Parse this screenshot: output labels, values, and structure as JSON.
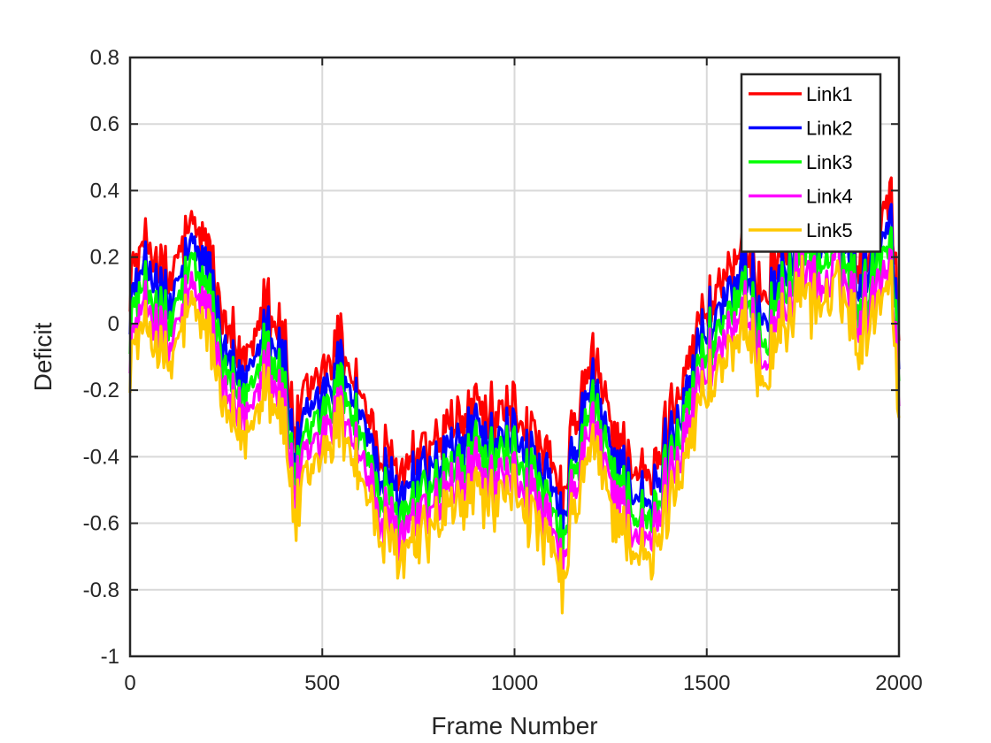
{
  "chart_data": {
    "type": "line",
    "title": "",
    "xlabel": "Frame Number",
    "ylabel": "Deficit",
    "xlim": [
      0,
      2000
    ],
    "ylim": [
      -1,
      0.8
    ],
    "x_ticks": [
      0,
      500,
      1000,
      1500,
      2000
    ],
    "x_tick_labels": [
      "0",
      "500",
      "1000",
      "1500",
      "2000"
    ],
    "y_ticks": [
      -1,
      -0.8,
      -0.6,
      -0.4,
      -0.2,
      0,
      0.2,
      0.4,
      0.6,
      0.8
    ],
    "y_tick_labels": [
      "-1",
      "-0.8",
      "-0.6",
      "-0.4",
      "-0.2",
      "0",
      "0.2",
      "0.4",
      "0.6",
      "0.8"
    ],
    "grid": true,
    "legend_position": "top-right",
    "x": [
      0,
      50,
      100,
      150,
      200,
      250,
      300,
      350,
      400,
      430,
      450,
      500,
      550,
      600,
      650,
      700,
      750,
      800,
      850,
      900,
      950,
      1000,
      1050,
      1100,
      1130,
      1150,
      1200,
      1250,
      1300,
      1350,
      1400,
      1450,
      1500,
      1550,
      1600,
      1650,
      1700,
      1750,
      1800,
      1850,
      1900,
      1950,
      1980,
      2000
    ],
    "series": [
      {
        "name": "Link1",
        "color": "#ff0000",
        "values": [
          0.15,
          0.25,
          0.1,
          0.28,
          0.25,
          -0.05,
          -0.1,
          0.1,
          -0.05,
          -0.35,
          -0.25,
          -0.15,
          -0.05,
          -0.2,
          -0.4,
          -0.45,
          -0.4,
          -0.35,
          -0.3,
          -0.25,
          -0.3,
          -0.25,
          -0.35,
          -0.45,
          -0.55,
          -0.35,
          -0.1,
          -0.3,
          -0.4,
          -0.5,
          -0.3,
          -0.1,
          0.05,
          0.15,
          0.2,
          0.1,
          0.25,
          0.35,
          0.3,
          0.35,
          0.2,
          0.35,
          0.4,
          -0.05
        ]
      },
      {
        "name": "Link2",
        "color": "#0000ff",
        "values": [
          0.08,
          0.18,
          0.03,
          0.21,
          0.18,
          -0.12,
          -0.17,
          0.03,
          -0.12,
          -0.42,
          -0.32,
          -0.22,
          -0.12,
          -0.27,
          -0.47,
          -0.52,
          -0.47,
          -0.42,
          -0.37,
          -0.32,
          -0.37,
          -0.32,
          -0.42,
          -0.52,
          -0.62,
          -0.42,
          -0.17,
          -0.37,
          -0.47,
          -0.57,
          -0.37,
          -0.17,
          -0.02,
          0.08,
          0.13,
          0.03,
          0.18,
          0.28,
          0.23,
          0.28,
          0.13,
          0.28,
          0.33,
          -0.12
        ]
      },
      {
        "name": "Link3",
        "color": "#00ff00",
        "values": [
          0.02,
          0.12,
          -0.03,
          0.15,
          0.12,
          -0.18,
          -0.23,
          -0.03,
          -0.18,
          -0.48,
          -0.38,
          -0.28,
          -0.18,
          -0.33,
          -0.53,
          -0.58,
          -0.53,
          -0.48,
          -0.43,
          -0.38,
          -0.43,
          -0.38,
          -0.48,
          -0.58,
          -0.68,
          -0.48,
          -0.23,
          -0.43,
          -0.53,
          -0.63,
          -0.43,
          -0.23,
          -0.08,
          0.02,
          0.07,
          -0.03,
          0.12,
          0.22,
          0.17,
          0.22,
          0.07,
          0.22,
          0.27,
          -0.18
        ]
      },
      {
        "name": "Link4",
        "color": "#ff00ff",
        "values": [
          -0.04,
          0.06,
          -0.09,
          0.09,
          0.06,
          -0.24,
          -0.29,
          -0.09,
          -0.24,
          -0.54,
          -0.44,
          -0.34,
          -0.24,
          -0.39,
          -0.59,
          -0.64,
          -0.59,
          -0.54,
          -0.49,
          -0.44,
          -0.49,
          -0.44,
          -0.54,
          -0.64,
          -0.74,
          -0.54,
          -0.29,
          -0.49,
          -0.59,
          -0.69,
          -0.49,
          -0.29,
          -0.14,
          -0.04,
          0.01,
          -0.09,
          0.06,
          0.16,
          0.11,
          0.16,
          0.01,
          0.16,
          0.21,
          -0.24
        ]
      },
      {
        "name": "Link5",
        "color": "#ffc800",
        "values": [
          -0.1,
          0.0,
          -0.15,
          0.03,
          0.0,
          -0.3,
          -0.35,
          -0.15,
          -0.3,
          -0.6,
          -0.5,
          -0.4,
          -0.3,
          -0.45,
          -0.65,
          -0.7,
          -0.65,
          -0.6,
          -0.55,
          -0.5,
          -0.55,
          -0.5,
          -0.6,
          -0.7,
          -0.8,
          -0.6,
          -0.35,
          -0.55,
          -0.65,
          -0.75,
          -0.55,
          -0.35,
          -0.2,
          -0.1,
          -0.05,
          -0.15,
          0.0,
          0.1,
          0.05,
          0.1,
          -0.05,
          0.1,
          0.15,
          -0.3
        ]
      }
    ]
  }
}
